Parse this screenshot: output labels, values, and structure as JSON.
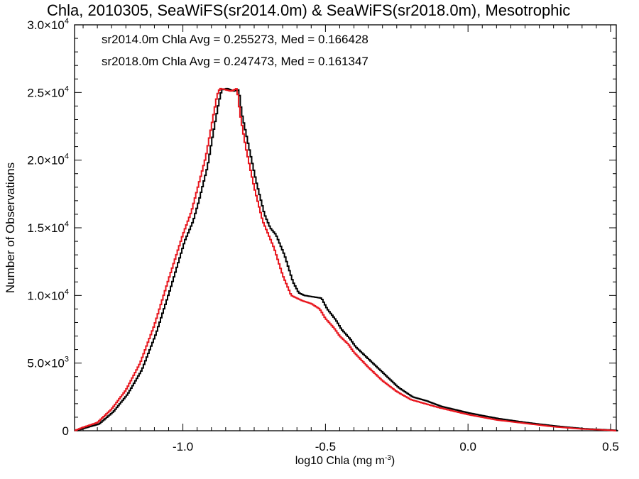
{
  "chart_data": {
    "type": "line",
    "title": "Chla, 2010305, SeaWiFS(sr2014.0m) & SeaWiFS(sr2018.0m), Mesotrophic",
    "xlabel": "log10 Chla (mg m",
    "xlabel_sup": "-3",
    "xlabel_end": ")",
    "ylabel": "Number of Observations",
    "xlim": [
      -1.38,
      0.52
    ],
    "ylim": [
      0,
      30000
    ],
    "x_ticks": [
      {
        "value": -1.0,
        "label": "-1.0"
      },
      {
        "value": -0.5,
        "label": "-0.5"
      },
      {
        "value": 0.0,
        "label": "0.0"
      },
      {
        "value": 0.5,
        "label": "0.5"
      }
    ],
    "y_ticks": [
      {
        "value": 0,
        "mantissa": "0",
        "exp": ""
      },
      {
        "value": 5000,
        "mantissa": "5.0×10",
        "exp": "3"
      },
      {
        "value": 10000,
        "mantissa": "1.0×10",
        "exp": "4"
      },
      {
        "value": 15000,
        "mantissa": "1.5×10",
        "exp": "4"
      },
      {
        "value": 20000,
        "mantissa": "2.0×10",
        "exp": "4"
      },
      {
        "value": 25000,
        "mantissa": "2.5×10",
        "exp": "4"
      },
      {
        "value": 30000,
        "mantissa": "3.0×10",
        "exp": "4"
      }
    ],
    "legend": [
      {
        "text": "sr2014.0m Chla Avg = 0.255273, Med = 0.166428",
        "color": "#000000"
      },
      {
        "text": "sr2018.0m Chla Avg = 0.247473, Med = 0.161347",
        "color": "#e8141c"
      }
    ],
    "series": [
      {
        "color": "#000000",
        "x": [
          -1.38,
          -1.35,
          -1.3,
          -1.25,
          -1.2,
          -1.15,
          -1.1,
          -1.05,
          -1.0,
          -0.97,
          -0.95,
          -0.92,
          -0.9,
          -0.88,
          -0.87,
          -0.85,
          -0.83,
          -0.81,
          -0.8,
          -0.78,
          -0.75,
          -0.72,
          -0.7,
          -0.68,
          -0.65,
          -0.62,
          -0.6,
          -0.58,
          -0.55,
          -0.52,
          -0.5,
          -0.47,
          -0.45,
          -0.42,
          -0.4,
          -0.35,
          -0.3,
          -0.25,
          -0.2,
          -0.15,
          -0.1,
          0.0,
          0.1,
          0.2,
          0.3,
          0.4,
          0.5,
          0.52
        ],
        "y": [
          0,
          200,
          500,
          1400,
          2700,
          4500,
          7200,
          10500,
          14000,
          15500,
          17000,
          19500,
          22000,
          24300,
          25200,
          25300,
          25100,
          25200,
          23500,
          21500,
          18500,
          16000,
          15000,
          14500,
          13000,
          11000,
          10200,
          10000,
          9900,
          9800,
          9000,
          8200,
          7500,
          6800,
          6200,
          5200,
          4200,
          3200,
          2500,
          2200,
          1800,
          1300,
          900,
          600,
          350,
          150,
          50,
          0
        ]
      },
      {
        "color": "#e8141c",
        "x": [
          -1.38,
          -1.35,
          -1.3,
          -1.25,
          -1.2,
          -1.15,
          -1.1,
          -1.05,
          -1.0,
          -0.97,
          -0.95,
          -0.92,
          -0.9,
          -0.88,
          -0.87,
          -0.85,
          -0.83,
          -0.81,
          -0.8,
          -0.78,
          -0.75,
          -0.72,
          -0.7,
          -0.68,
          -0.65,
          -0.62,
          -0.6,
          -0.58,
          -0.55,
          -0.52,
          -0.5,
          -0.47,
          -0.45,
          -0.42,
          -0.4,
          -0.35,
          -0.3,
          -0.25,
          -0.2,
          -0.15,
          -0.1,
          0.0,
          0.1,
          0.2,
          0.3,
          0.4,
          0.5,
          0.52
        ],
        "y": [
          0,
          250,
          600,
          1600,
          3000,
          5000,
          7800,
          11200,
          14500,
          16200,
          17800,
          20200,
          22500,
          24800,
          25300,
          25200,
          25100,
          25300,
          23500,
          21000,
          18000,
          15500,
          14500,
          13500,
          11500,
          10000,
          9800,
          9600,
          9400,
          9000,
          8300,
          7600,
          7000,
          6400,
          5800,
          4700,
          3700,
          2900,
          2300,
          2000,
          1700,
          1200,
          800,
          550,
          300,
          130,
          40,
          0
        ]
      }
    ]
  }
}
